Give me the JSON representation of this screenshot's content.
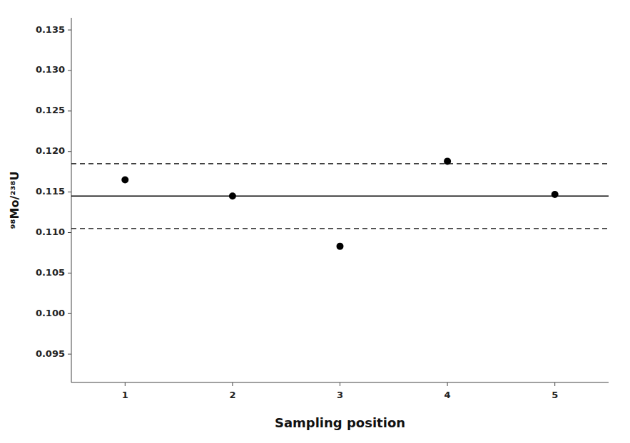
{
  "chart_data": {
    "type": "scatter",
    "x": [
      1,
      2,
      3,
      4,
      5
    ],
    "y": [
      0.1165,
      0.1145,
      0.1083,
      0.1188,
      0.1147
    ],
    "color": "black",
    "marker": "circle",
    "reference_lines": [
      {
        "value": 0.1145,
        "line_style": "solid",
        "color": "black"
      },
      {
        "value": 0.1185,
        "line_style": "dashed",
        "color": "black"
      },
      {
        "value": 0.1105,
        "line_style": "dashed",
        "color": "black"
      }
    ],
    "xlabel": "Sampling position",
    "ylabel": "⁹⁸Mo/²³⁸U",
    "xlim": [
      0.5,
      5.5
    ],
    "ylim": [
      0.0915,
      0.1365
    ],
    "xticks": [
      1,
      2,
      3,
      4,
      5
    ],
    "yticks": [
      0.095,
      {
        "value": 0.1,
        "label": "0.100"
      },
      0.105,
      {
        "value": 0.11,
        "label": "0.110"
      },
      0.115,
      {
        "value": 0.12,
        "label": "0.120"
      },
      0.125,
      {
        "value": 0.13,
        "label": "0.130"
      },
      0.135
    ],
    "grid": false
  }
}
